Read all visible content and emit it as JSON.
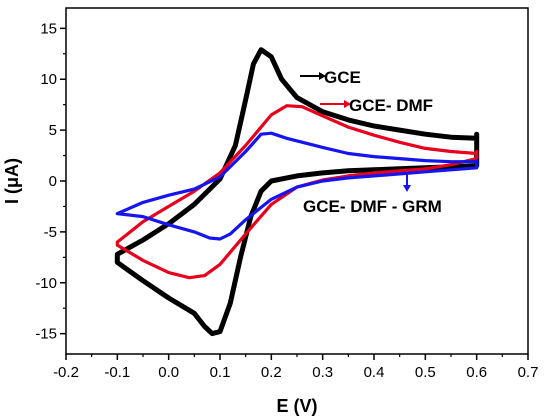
{
  "chart_data": {
    "type": "line",
    "xlabel": "E (V)",
    "ylabel": "I (μA)",
    "xlim": [
      -0.2,
      0.7
    ],
    "ylim": [
      -17,
      17
    ],
    "xticks": [
      "-0.2",
      "-0.1",
      "0.0",
      "0.1",
      "0.2",
      "0.3",
      "0.4",
      "0.5",
      "0.6",
      "0.7"
    ],
    "yticks": [
      "-15",
      "-10",
      "-5",
      "0",
      "5",
      "10",
      "15"
    ],
    "grid": false,
    "legend": "none",
    "series": [
      {
        "name": "GCE",
        "color": "#000000",
        "points": [
          [
            -0.1,
            -7.2
          ],
          [
            -0.05,
            -5.8
          ],
          [
            0.0,
            -4.2
          ],
          [
            0.05,
            -2.3
          ],
          [
            0.1,
            0.2
          ],
          [
            0.13,
            3.5
          ],
          [
            0.15,
            8.0
          ],
          [
            0.165,
            11.5
          ],
          [
            0.18,
            12.9
          ],
          [
            0.2,
            12.2
          ],
          [
            0.22,
            10.0
          ],
          [
            0.25,
            8.2
          ],
          [
            0.3,
            6.8
          ],
          [
            0.35,
            6.0
          ],
          [
            0.4,
            5.4
          ],
          [
            0.45,
            5.0
          ],
          [
            0.5,
            4.6
          ],
          [
            0.55,
            4.3
          ],
          [
            0.6,
            4.2
          ],
          [
            0.6,
            4.6
          ],
          [
            0.6,
            1.5
          ],
          [
            0.55,
            1.4
          ],
          [
            0.5,
            1.3
          ],
          [
            0.45,
            1.2
          ],
          [
            0.4,
            1.1
          ],
          [
            0.35,
            1.0
          ],
          [
            0.3,
            0.8
          ],
          [
            0.25,
            0.5
          ],
          [
            0.2,
            0.0
          ],
          [
            0.18,
            -1.0
          ],
          [
            0.16,
            -3.5
          ],
          [
            0.14,
            -7.5
          ],
          [
            0.12,
            -12.0
          ],
          [
            0.1,
            -14.8
          ],
          [
            0.085,
            -15.0
          ],
          [
            0.07,
            -14.3
          ],
          [
            0.05,
            -13.0
          ],
          [
            0.0,
            -11.5
          ],
          [
            -0.05,
            -9.8
          ],
          [
            -0.1,
            -8.0
          ]
        ]
      },
      {
        "name": "GCE- DMF",
        "color": "#e8001c",
        "points": [
          [
            -0.1,
            -6.0
          ],
          [
            -0.05,
            -4.0
          ],
          [
            0.0,
            -2.5
          ],
          [
            0.05,
            -1.0
          ],
          [
            0.1,
            0.8
          ],
          [
            0.15,
            3.5
          ],
          [
            0.2,
            6.5
          ],
          [
            0.23,
            7.4
          ],
          [
            0.26,
            7.3
          ],
          [
            0.3,
            6.4
          ],
          [
            0.35,
            5.3
          ],
          [
            0.4,
            4.5
          ],
          [
            0.45,
            3.8
          ],
          [
            0.5,
            3.2
          ],
          [
            0.55,
            2.9
          ],
          [
            0.6,
            2.7
          ],
          [
            0.6,
            2.9
          ],
          [
            0.6,
            2.2
          ],
          [
            0.55,
            1.6
          ],
          [
            0.5,
            1.2
          ],
          [
            0.45,
            1.0
          ],
          [
            0.4,
            0.8
          ],
          [
            0.35,
            0.5
          ],
          [
            0.3,
            0.1
          ],
          [
            0.25,
            -0.6
          ],
          [
            0.2,
            -2.3
          ],
          [
            0.15,
            -5.2
          ],
          [
            0.1,
            -8.2
          ],
          [
            0.07,
            -9.3
          ],
          [
            0.04,
            -9.5
          ],
          [
            0.0,
            -9.0
          ],
          [
            -0.05,
            -7.8
          ],
          [
            -0.1,
            -6.3
          ]
        ]
      },
      {
        "name": "GCE- DMF - GRM",
        "color": "#1515ef",
        "points": [
          [
            -0.1,
            -3.2
          ],
          [
            -0.05,
            -2.1
          ],
          [
            0.0,
            -1.4
          ],
          [
            0.05,
            -0.8
          ],
          [
            0.1,
            0.4
          ],
          [
            0.15,
            2.9
          ],
          [
            0.18,
            4.6
          ],
          [
            0.2,
            4.7
          ],
          [
            0.23,
            4.2
          ],
          [
            0.3,
            3.3
          ],
          [
            0.35,
            2.7
          ],
          [
            0.4,
            2.4
          ],
          [
            0.45,
            2.2
          ],
          [
            0.5,
            2.0
          ],
          [
            0.55,
            1.9
          ],
          [
            0.6,
            1.9
          ],
          [
            0.6,
            2.0
          ],
          [
            0.6,
            1.3
          ],
          [
            0.55,
            1.1
          ],
          [
            0.5,
            0.9
          ],
          [
            0.45,
            0.7
          ],
          [
            0.4,
            0.5
          ],
          [
            0.35,
            0.3
          ],
          [
            0.3,
            0.0
          ],
          [
            0.25,
            -0.6
          ],
          [
            0.2,
            -1.8
          ],
          [
            0.15,
            -3.8
          ],
          [
            0.12,
            -5.2
          ],
          [
            0.1,
            -5.7
          ],
          [
            0.08,
            -5.6
          ],
          [
            0.05,
            -5.0
          ],
          [
            0.0,
            -4.3
          ],
          [
            -0.05,
            -3.5
          ],
          [
            -0.1,
            -3.2
          ]
        ]
      }
    ],
    "annotations": [
      {
        "text": "GCE",
        "series": "GCE",
        "arrow": "right"
      },
      {
        "text": "GCE- DMF",
        "series": "GCE- DMF",
        "arrow": "right"
      },
      {
        "text": "GCE- DMF - GRM",
        "series": "GCE- DMF - GRM",
        "arrow": "down"
      }
    ]
  }
}
